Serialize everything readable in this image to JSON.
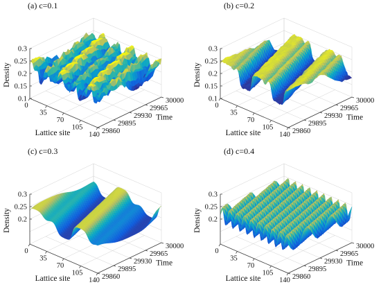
{
  "chart_data": [
    {
      "type": "surface",
      "title": "(a) c=0.1",
      "c": 0.1,
      "xlabel": "Lattice site",
      "ylabel": "Time",
      "zlabel": "Density",
      "x_ticks": [
        "0",
        "35",
        "70",
        "105",
        "140"
      ],
      "y_ticks": [
        "29860",
        "29895",
        "29930",
        "29965",
        "30000"
      ],
      "z_ticks": [
        "0.1",
        "0.15",
        "0.2",
        "0.25",
        "0.3"
      ],
      "xlim": [
        0,
        140
      ],
      "ylim": [
        29860,
        30000
      ],
      "zlim": [
        0.1,
        0.3
      ],
      "pattern": "irregular traveling density waves",
      "colormap": "parula"
    },
    {
      "type": "surface",
      "title": "(b) c=0.2",
      "c": 0.2,
      "xlabel": "Lattice site",
      "ylabel": "Time",
      "zlabel": "Density",
      "x_ticks": [
        "0",
        "35",
        "70",
        "105",
        "140"
      ],
      "y_ticks": [
        "29860",
        "29895",
        "29930",
        "29965",
        "30000"
      ],
      "z_ticks": [
        "0.1",
        "0.15",
        "0.2",
        "0.25",
        "0.3"
      ],
      "xlim": [
        0,
        140
      ],
      "ylim": [
        29860,
        30000
      ],
      "zlim": [
        0.1,
        0.3
      ],
      "pattern": "kink-antikink waves",
      "colormap": "parula"
    },
    {
      "type": "surface",
      "title": "(c) c=0.3",
      "c": 0.3,
      "xlabel": "Lattice site",
      "ylabel": "Time",
      "zlabel": "Density",
      "x_ticks": [
        "0",
        "35",
        "70",
        "105",
        "140"
      ],
      "y_ticks": [
        "29860",
        "29895",
        "29930",
        "29965",
        "30000"
      ],
      "z_ticks": [
        "0.2",
        "0.25",
        "0.3"
      ],
      "xlim": [
        0,
        140
      ],
      "ylim": [
        29860,
        30000
      ],
      "zlim": [
        0.2,
        0.3
      ],
      "pattern": "smooth density waves",
      "colormap": "parula"
    },
    {
      "type": "surface",
      "title": "(d) c=0.4",
      "c": 0.4,
      "xlabel": "Lattice site",
      "ylabel": "Time",
      "zlabel": "Density",
      "x_ticks": [
        "0",
        "35",
        "70",
        "105",
        "140"
      ],
      "y_ticks": [
        "29860",
        "29895",
        "29930",
        "29965",
        "30000"
      ],
      "z_ticks": [
        "0.2",
        "0.25",
        "0.3"
      ],
      "xlim": [
        0,
        140
      ],
      "ylim": [
        29860,
        30000
      ],
      "zlim": [
        0.2,
        0.3
      ],
      "pattern": "regular stripe waves",
      "colormap": "parula"
    }
  ]
}
